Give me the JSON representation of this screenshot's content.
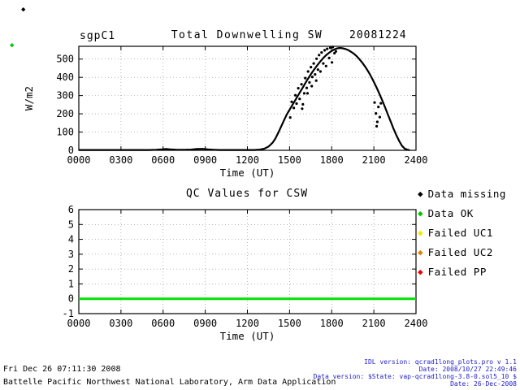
{
  "colors": {
    "background": "#ffffff",
    "axis": "#000000",
    "grid": "#888888",
    "qc_line_green": "#00e100",
    "footer_right_blue": "#2222cc"
  },
  "corner_markers": [
    {
      "name": "black-diamond",
      "color": "#000000"
    },
    {
      "name": "green-diamond",
      "color": "#00c800"
    }
  ],
  "chart_data": [
    {
      "id": "total-downwelling-sw",
      "type": "scatter",
      "site": "sgpC1",
      "title": "Total Downwelling SW",
      "date": "20081224",
      "xlabel": "Time (UT)",
      "ylabel": "W/m2",
      "xlim": [
        0,
        24
      ],
      "ylim": [
        0,
        570
      ],
      "grid": true,
      "xticks": [
        {
          "v": 0,
          "label": "0000"
        },
        {
          "v": 3,
          "label": "0300"
        },
        {
          "v": 6,
          "label": "0600"
        },
        {
          "v": 9,
          "label": "0900"
        },
        {
          "v": 12,
          "label": "1200"
        },
        {
          "v": 15,
          "label": "1500"
        },
        {
          "v": 18,
          "label": "1800"
        },
        {
          "v": 21,
          "label": "2100"
        },
        {
          "v": 24,
          "label": "2400"
        }
      ],
      "yticks": [
        {
          "v": 0,
          "label": "0"
        },
        {
          "v": 100,
          "label": "100"
        },
        {
          "v": 200,
          "label": "200"
        },
        {
          "v": 300,
          "label": "300"
        },
        {
          "v": 400,
          "label": "400"
        },
        {
          "v": 500,
          "label": "500"
        }
      ],
      "series": [
        {
          "name": "downwelling-sw-curve",
          "type": "line",
          "color": "#000000",
          "width": 2.2,
          "points": [
            [
              0,
              2
            ],
            [
              0.5,
              2
            ],
            [
              1,
              2
            ],
            [
              1.5,
              2
            ],
            [
              2,
              2
            ],
            [
              2.5,
              2
            ],
            [
              3,
              2
            ],
            [
              3.5,
              2
            ],
            [
              4,
              2
            ],
            [
              4.5,
              2
            ],
            [
              5,
              2
            ],
            [
              5.5,
              3
            ],
            [
              5.9,
              5
            ],
            [
              6.2,
              7
            ],
            [
              6.5,
              5
            ],
            [
              7,
              3
            ],
            [
              7.5,
              3
            ],
            [
              8,
              4
            ],
            [
              8.4,
              7
            ],
            [
              8.8,
              8
            ],
            [
              9.2,
              5
            ],
            [
              9.6,
              3
            ],
            [
              10,
              2
            ],
            [
              10.5,
              2
            ],
            [
              11,
              2
            ],
            [
              11.5,
              2
            ],
            [
              12,
              2
            ],
            [
              12.5,
              2
            ],
            [
              12.9,
              4
            ],
            [
              13.2,
              9
            ],
            [
              13.5,
              20
            ],
            [
              13.8,
              42
            ],
            [
              14,
              66
            ],
            [
              14.2,
              96
            ],
            [
              14.4,
              130
            ],
            [
              14.6,
              164
            ],
            [
              14.8,
              196
            ],
            [
              15,
              222
            ],
            [
              15.2,
              248
            ],
            [
              15.4,
              274
            ],
            [
              15.6,
              300
            ],
            [
              15.8,
              326
            ],
            [
              16,
              352
            ],
            [
              16.2,
              378
            ],
            [
              16.4,
              403
            ],
            [
              16.6,
              426
            ],
            [
              16.8,
              448
            ],
            [
              17,
              469
            ],
            [
              17.2,
              488
            ],
            [
              17.4,
              506
            ],
            [
              17.6,
              521
            ],
            [
              17.8,
              534
            ],
            [
              18,
              545
            ],
            [
              18.2,
              553
            ],
            [
              18.4,
              559
            ],
            [
              18.6,
              561
            ],
            [
              18.8,
              559
            ],
            [
              19,
              555
            ],
            [
              19.2,
              548
            ],
            [
              19.4,
              539
            ],
            [
              19.6,
              528
            ],
            [
              19.8,
              514
            ],
            [
              20,
              497
            ],
            [
              20.2,
              478
            ],
            [
              20.4,
              456
            ],
            [
              20.6,
              432
            ],
            [
              20.8,
              405
            ],
            [
              21,
              375
            ],
            [
              21.2,
              343
            ],
            [
              21.4,
              309
            ],
            [
              21.6,
              273
            ],
            [
              21.8,
              235
            ],
            [
              22,
              196
            ],
            [
              22.2,
              157
            ],
            [
              22.4,
              119
            ],
            [
              22.6,
              83
            ],
            [
              22.8,
              51
            ],
            [
              23,
              25
            ],
            [
              23.2,
              9
            ],
            [
              23.4,
              3
            ],
            [
              23.55,
              1
            ]
          ]
        },
        {
          "name": "cloud-scatter-points",
          "type": "scatter",
          "color": "#000000",
          "r": 1.6,
          "points": [
            [
              15.05,
              180
            ],
            [
              15.15,
              266
            ],
            [
              15.3,
              232
            ],
            [
              15.42,
              302
            ],
            [
              15.5,
              256
            ],
            [
              15.62,
              340
            ],
            [
              15.72,
              282
            ],
            [
              15.85,
              362
            ],
            [
              15.9,
              228
            ],
            [
              15.95,
              252
            ],
            [
              16.05,
              312
            ],
            [
              16.12,
              396
            ],
            [
              16.22,
              342
            ],
            [
              16.28,
              312
            ],
            [
              16.32,
              432
            ],
            [
              16.42,
              372
            ],
            [
              16.52,
              456
            ],
            [
              16.58,
              352
            ],
            [
              16.62,
              402
            ],
            [
              16.72,
              476
            ],
            [
              16.82,
              416
            ],
            [
              16.9,
              382
            ],
            [
              16.92,
              502
            ],
            [
              17.02,
              442
            ],
            [
              17.1,
              522
            ],
            [
              17.2,
              432
            ],
            [
              17.28,
              536
            ],
            [
              17.4,
              476
            ],
            [
              17.5,
              548
            ],
            [
              17.6,
              462
            ],
            [
              17.68,
              556
            ],
            [
              17.82,
              506
            ],
            [
              17.9,
              562
            ],
            [
              18.02,
              482
            ],
            [
              18.08,
              566
            ],
            [
              18.2,
              532
            ],
            [
              18.3,
              542
            ],
            [
              21.05,
              262
            ],
            [
              21.15,
              202
            ],
            [
              21.2,
              132
            ],
            [
              21.25,
              156
            ],
            [
              21.32,
              238
            ],
            [
              21.42,
              182
            ],
            [
              21.5,
              258
            ]
          ]
        }
      ]
    },
    {
      "id": "qc-values-csw",
      "type": "line",
      "title": "QC Values for CSW",
      "xlabel": "Time (UT)",
      "ylabel": "",
      "xlim": [
        0,
        24
      ],
      "ylim": [
        -1,
        6
      ],
      "grid": true,
      "xticks": [
        {
          "v": 0,
          "label": "0000"
        },
        {
          "v": 3,
          "label": "0300"
        },
        {
          "v": 6,
          "label": "0600"
        },
        {
          "v": 9,
          "label": "0900"
        },
        {
          "v": 12,
          "label": "1200"
        },
        {
          "v": 15,
          "label": "1500"
        },
        {
          "v": 18,
          "label": "1800"
        },
        {
          "v": 21,
          "label": "2100"
        },
        {
          "v": 24,
          "label": "2400"
        }
      ],
      "yticks": [
        {
          "v": -1,
          "label": "-1"
        },
        {
          "v": 0,
          "label": "0"
        },
        {
          "v": 1,
          "label": "1"
        },
        {
          "v": 2,
          "label": "2"
        },
        {
          "v": 3,
          "label": "3"
        },
        {
          "v": 4,
          "label": "4"
        },
        {
          "v": 5,
          "label": "5"
        },
        {
          "v": 6,
          "label": "6"
        }
      ],
      "series": [
        {
          "name": "qc-data-ok-line",
          "type": "line",
          "color": "#00e100",
          "width": 3,
          "points": [
            [
              0,
              0
            ],
            [
              24,
              0
            ]
          ]
        }
      ]
    }
  ],
  "legend": {
    "items": [
      {
        "label": "Data missing",
        "color": "#000000"
      },
      {
        "label": "Data OK",
        "color": "#00c800"
      },
      {
        "label": "Failed UC1",
        "color": "#f0e800"
      },
      {
        "label": "Failed UC2",
        "color": "#e08000"
      },
      {
        "label": "Failed PP",
        "color": "#ee0000"
      }
    ]
  },
  "footer": {
    "left": [
      "Fri Dec 26 07:11:30 2008",
      "Battelle Pacific Northwest National Laboratory, Arm Data Application"
    ],
    "right": [
      "IDL version: qcrad1long_plots.pro v 1.1",
      "Date: 2008/10/27 22:49:46",
      "Data version: $State: vap-qcrad1long-3.8-0.sol5_10 $",
      "Date: 26-Dec-2008"
    ]
  }
}
